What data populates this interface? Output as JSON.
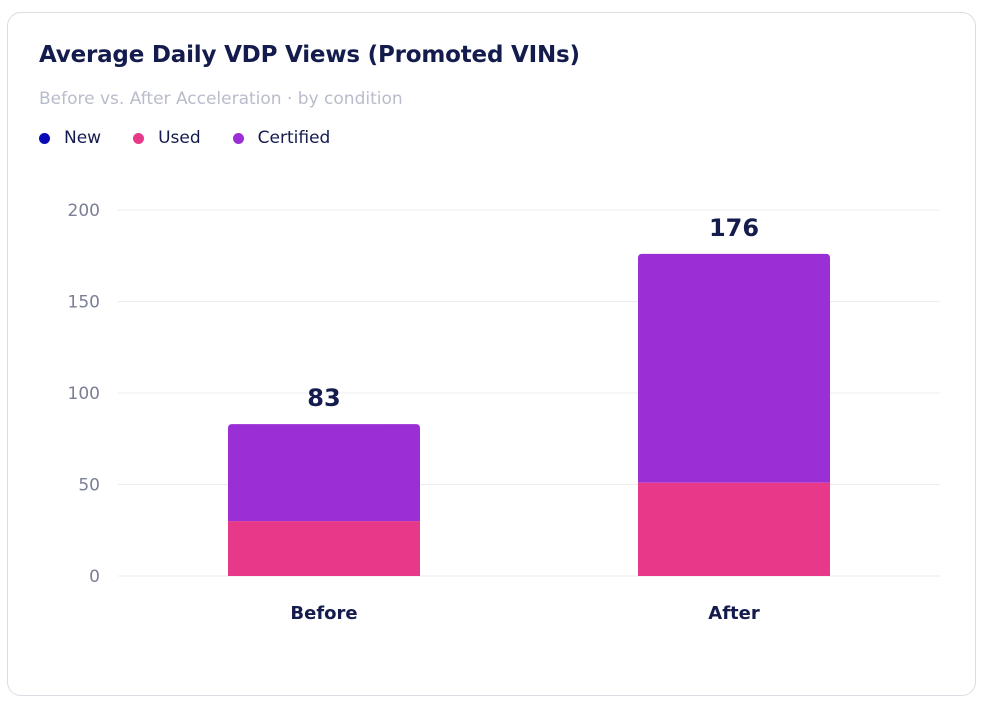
{
  "card": {
    "title": "Average Daily VDP Views (Promoted VINs)",
    "subtitle": "Before vs. After Acceleration · by condition"
  },
  "legend": [
    {
      "name": "New",
      "color": "#0a0ab8"
    },
    {
      "name": "Used",
      "color": "#e8388a"
    },
    {
      "name": "Certified",
      "color": "#9b2fd6"
    }
  ],
  "colors": {
    "title": "#141b4d",
    "subtitle": "#b9bccb",
    "tick": "#7a7f96",
    "grid": "#ececf2"
  },
  "chart_data": {
    "type": "bar",
    "stacked": true,
    "categories": [
      "Before",
      "After"
    ],
    "series": [
      {
        "name": "New",
        "values": [
          0,
          0
        ],
        "color": "#0a0ab8"
      },
      {
        "name": "Used",
        "values": [
          30,
          51
        ],
        "color": "#e8388a"
      },
      {
        "name": "Certified",
        "values": [
          53,
          125
        ],
        "color": "#9b2fd6"
      }
    ],
    "totals": [
      83,
      176
    ],
    "total_labels": [
      "83",
      "176"
    ],
    "title": "Average Daily VDP Views (Promoted VINs)",
    "subtitle": "Before vs. After Acceleration · by condition",
    "xlabel": "",
    "ylabel": "",
    "ylim": [
      0,
      200
    ],
    "yticks": [
      0,
      50,
      100,
      150,
      200
    ],
    "grid": true,
    "legend_position": "top-left"
  }
}
